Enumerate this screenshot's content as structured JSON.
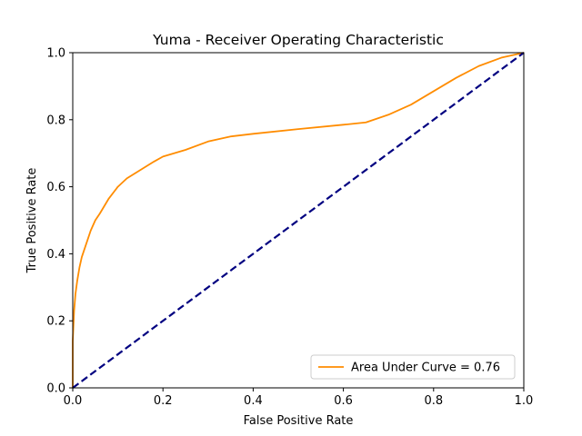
{
  "chart_data": {
    "type": "line",
    "title": "Yuma - Receiver Operating Characteristic",
    "xlabel": "False Positive Rate",
    "ylabel": "True Positive Rate",
    "xlim": [
      0.0,
      1.0
    ],
    "ylim": [
      0.0,
      1.0
    ],
    "xticks": [
      "0.0",
      "0.2",
      "0.4",
      "0.6",
      "0.8",
      "1.0"
    ],
    "yticks": [
      "0.0",
      "0.2",
      "0.4",
      "0.6",
      "0.8",
      "1.0"
    ],
    "grid": false,
    "legend_position": "lower-right",
    "series": [
      {
        "name": "Area Under Curve = 0.76",
        "color": "#ff8c00",
        "style": "solid",
        "x": [
          0.0,
          0.0,
          0.003,
          0.006,
          0.01,
          0.015,
          0.02,
          0.03,
          0.04,
          0.05,
          0.06,
          0.08,
          0.1,
          0.12,
          0.15,
          0.18,
          0.2,
          0.25,
          0.3,
          0.35,
          0.4,
          0.5,
          0.6,
          0.65,
          0.7,
          0.75,
          0.8,
          0.85,
          0.9,
          0.95,
          1.0
        ],
        "y": [
          0.0,
          0.14,
          0.23,
          0.28,
          0.32,
          0.36,
          0.39,
          0.43,
          0.47,
          0.5,
          0.52,
          0.565,
          0.6,
          0.625,
          0.65,
          0.675,
          0.69,
          0.71,
          0.735,
          0.75,
          0.758,
          0.772,
          0.785,
          0.792,
          0.815,
          0.845,
          0.885,
          0.925,
          0.96,
          0.985,
          1.0
        ]
      },
      {
        "name": "",
        "color": "#000080",
        "style": "dashed",
        "x": [
          0.0,
          1.0
        ],
        "y": [
          0.0,
          1.0
        ]
      }
    ]
  }
}
